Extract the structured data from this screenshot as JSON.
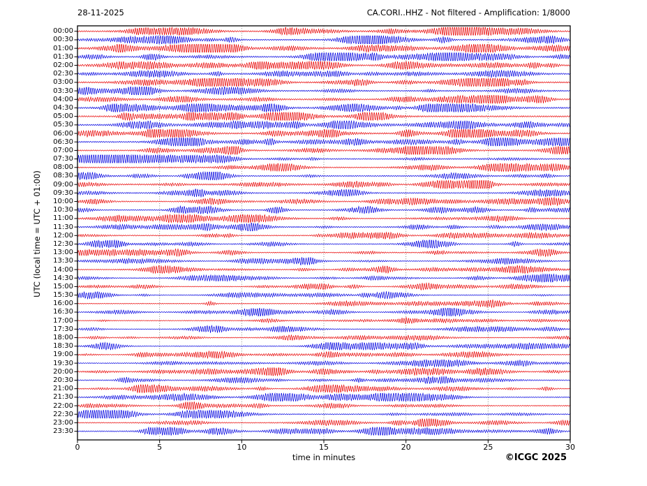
{
  "header": {
    "date": "28-11-2025",
    "title": "CA.CORI..HHZ - Not filtered - Amplification: 1/8000"
  },
  "axes": {
    "y_label": "UTC (local time = UTC + 01:00)",
    "x_label": "time in minutes",
    "x_ticks": [
      0,
      5,
      10,
      15,
      20,
      25,
      30
    ]
  },
  "footer": {
    "copyright": "©ICGC 2025"
  },
  "colors": {
    "trace_red": "#e80000",
    "trace_blue": "#0000e0",
    "grid": "#7a7a7a",
    "axis": "#000000",
    "background": "#ffffff"
  },
  "chart_data": {
    "type": "line",
    "subtype": "helicorder-seismogram",
    "title": "CA.CORI..HHZ - Not filtered - Amplification: 1/8000",
    "date": "28-11-2025",
    "station": "CA.CORI..HHZ",
    "filter": "Not filtered",
    "amplification": "1/8000",
    "xlabel": "time in minutes",
    "ylabel": "UTC (local time = UTC + 01:00)",
    "x_range_minutes": [
      0,
      30
    ],
    "minutes_per_row": 30,
    "rows": 48,
    "grid_minutes": [
      5,
      10,
      15,
      20,
      25
    ],
    "grid_style": "dotted-vertical",
    "legend_position": "none",
    "note": "Continuous ground-motion noise traces; amplitude envelopes estimated visually per 30-min row (relative units 0-1), waveform synthesized",
    "traces": [
      {
        "label": "00:00",
        "color": "red",
        "activity": 0.8
      },
      {
        "label": "00:30",
        "color": "blue",
        "activity": 0.85
      },
      {
        "label": "01:00",
        "color": "red",
        "activity": 0.85
      },
      {
        "label": "01:30",
        "color": "blue",
        "activity": 0.8
      },
      {
        "label": "02:00",
        "color": "red",
        "activity": 0.8
      },
      {
        "label": "02:30",
        "color": "blue",
        "activity": 0.85
      },
      {
        "label": "03:00",
        "color": "red",
        "activity": 0.85
      },
      {
        "label": "03:30",
        "color": "blue",
        "activity": 0.8
      },
      {
        "label": "04:00",
        "color": "red",
        "activity": 0.75
      },
      {
        "label": "04:30",
        "color": "blue",
        "activity": 0.95
      },
      {
        "label": "05:00",
        "color": "red",
        "activity": 0.9
      },
      {
        "label": "05:30",
        "color": "blue",
        "activity": 0.9
      },
      {
        "label": "06:00",
        "color": "red",
        "activity": 0.85
      },
      {
        "label": "06:30",
        "color": "blue",
        "activity": 0.8
      },
      {
        "label": "07:00",
        "color": "red",
        "activity": 0.75
      },
      {
        "label": "07:30",
        "color": "blue",
        "activity": 0.75
      },
      {
        "label": "08:00",
        "color": "red",
        "activity": 0.7
      },
      {
        "label": "08:30",
        "color": "blue",
        "activity": 0.75
      },
      {
        "label": "09:00",
        "color": "red",
        "activity": 0.85
      },
      {
        "label": "09:30",
        "color": "blue",
        "activity": 0.7
      },
      {
        "label": "10:00",
        "color": "red",
        "activity": 0.65
      },
      {
        "label": "10:30",
        "color": "blue",
        "activity": 0.65
      },
      {
        "label": "11:00",
        "color": "red",
        "activity": 0.65
      },
      {
        "label": "11:30",
        "color": "blue",
        "activity": 0.7
      },
      {
        "label": "12:00",
        "color": "red",
        "activity": 0.6
      },
      {
        "label": "12:30",
        "color": "blue",
        "activity": 0.6
      },
      {
        "label": "13:00",
        "color": "red",
        "activity": 0.6
      },
      {
        "label": "13:30",
        "color": "blue",
        "activity": 0.55
      },
      {
        "label": "14:00",
        "color": "red",
        "activity": 0.55
      },
      {
        "label": "14:30",
        "color": "blue",
        "activity": 0.55
      },
      {
        "label": "15:00",
        "color": "red",
        "activity": 0.5
      },
      {
        "label": "15:30",
        "color": "blue",
        "activity": 0.5
      },
      {
        "label": "16:00",
        "color": "red",
        "activity": 0.5
      },
      {
        "label": "16:30",
        "color": "blue",
        "activity": 0.55
      },
      {
        "label": "17:00",
        "color": "red",
        "activity": 0.45
      },
      {
        "label": "17:30",
        "color": "blue",
        "activity": 0.45
      },
      {
        "label": "18:00",
        "color": "red",
        "activity": 0.45
      },
      {
        "label": "18:30",
        "color": "blue",
        "activity": 0.5
      },
      {
        "label": "19:00",
        "color": "red",
        "activity": 0.5
      },
      {
        "label": "19:30",
        "color": "blue",
        "activity": 0.55
      },
      {
        "label": "20:00",
        "color": "red",
        "activity": 0.6
      },
      {
        "label": "20:30",
        "color": "blue",
        "activity": 0.6
      },
      {
        "label": "21:00",
        "color": "red",
        "activity": 0.6
      },
      {
        "label": "21:30",
        "color": "blue",
        "activity": 0.6
      },
      {
        "label": "22:00",
        "color": "red",
        "activity": 0.6
      },
      {
        "label": "22:30",
        "color": "blue",
        "activity": 0.65
      },
      {
        "label": "23:00",
        "color": "red",
        "activity": 0.55
      },
      {
        "label": "23:30",
        "color": "blue",
        "activity": 0.65
      }
    ]
  }
}
